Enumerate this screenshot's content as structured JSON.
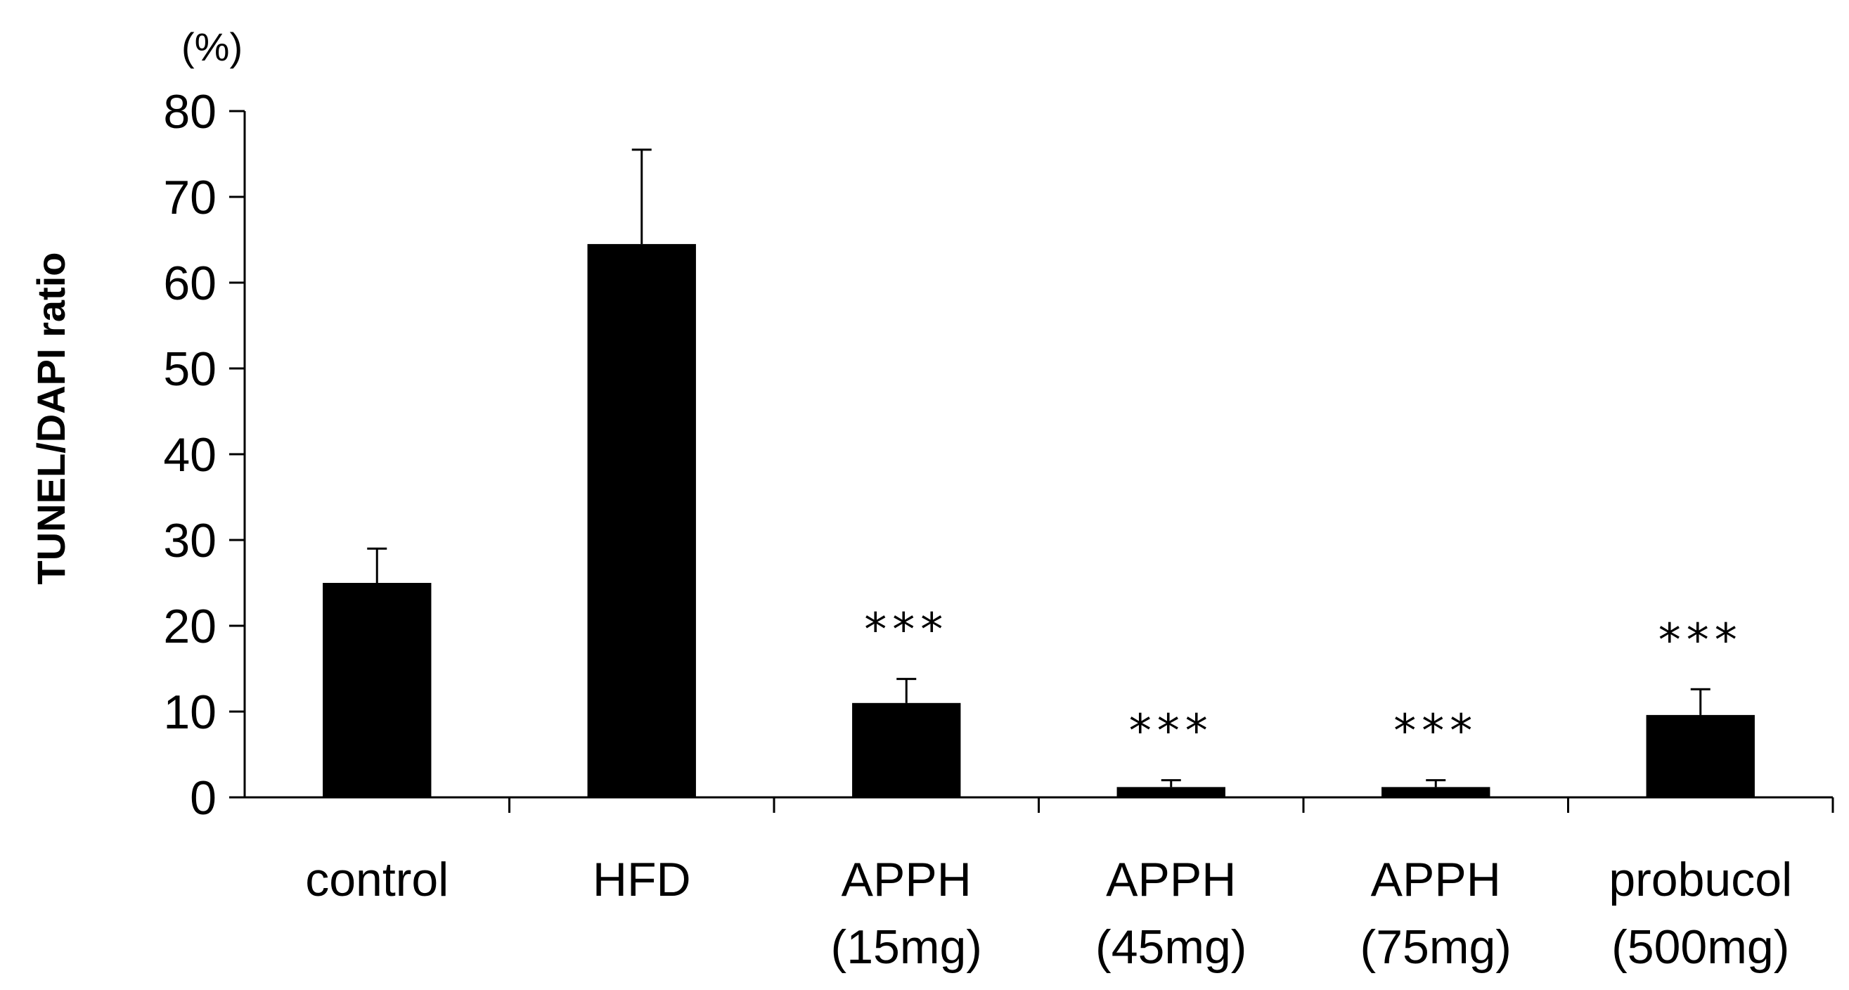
{
  "chart_data": {
    "type": "bar",
    "unit": "(%)",
    "ylabel": "TUNEL/DAPI ratio",
    "xlabel": "",
    "title": "",
    "ylim": [
      0,
      80
    ],
    "yticks": [
      0,
      10,
      20,
      30,
      40,
      50,
      60,
      70,
      80
    ],
    "ytick_labels": [
      "0",
      "10",
      "20",
      "30",
      "40",
      "50",
      "60",
      "70",
      "80"
    ],
    "grid": false,
    "legend": "none",
    "bar_color": "#000000",
    "categories": [
      {
        "line1": "control",
        "line2": ""
      },
      {
        "line1": "HFD",
        "line2": ""
      },
      {
        "line1": "APPH",
        "line2": "(15mg)"
      },
      {
        "line1": "APPH",
        "line2": "(45mg)"
      },
      {
        "line1": "APPH",
        "line2": "(75mg)"
      },
      {
        "line1": "probucol",
        "line2": "(500mg)"
      }
    ],
    "values": [
      25,
      64.5,
      11,
      1.2,
      1.2,
      9.6
    ],
    "errors": [
      4,
      11,
      2.8,
      0.8,
      0.8,
      3
    ],
    "significance": [
      "",
      "",
      "***",
      "***",
      "***",
      "***"
    ]
  }
}
